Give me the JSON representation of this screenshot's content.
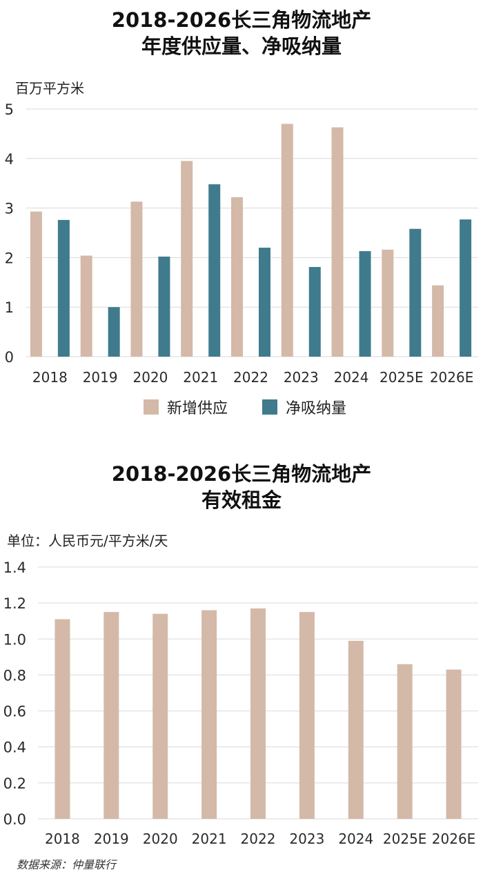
{
  "colors": {
    "supply": "#d4b9a8",
    "absorption": "#3f7b8c",
    "rent": "#d4b9a8",
    "grid": "#d9d9d9"
  },
  "chart_data": [
    {
      "type": "bar",
      "title_lines": [
        "2018-2026长三角物流地产",
        "年度供应量、净吸纳量"
      ],
      "unit": "百万平方米",
      "categories": [
        "2018",
        "2019",
        "2020",
        "2021",
        "2022",
        "2023",
        "2024",
        "2025E",
        "2026E"
      ],
      "series": [
        {
          "name": "新增供应",
          "values": [
            2.93,
            2.04,
            3.13,
            3.95,
            3.22,
            4.7,
            4.63,
            2.16,
            1.44
          ]
        },
        {
          "name": "净吸纳量",
          "values": [
            2.76,
            1.0,
            2.02,
            3.48,
            2.2,
            1.81,
            2.13,
            2.58,
            2.77
          ]
        }
      ],
      "ylim": [
        0,
        5
      ],
      "yticks": [
        "0",
        "1",
        "2",
        "3",
        "4",
        "5"
      ],
      "grid": true,
      "legend": "bottom"
    },
    {
      "type": "bar",
      "title_lines": [
        "2018-2026长三角物流地产",
        "有效租金"
      ],
      "unit": "单位：人民币元/平方米/天",
      "categories": [
        "2018",
        "2019",
        "2020",
        "2021",
        "2022",
        "2023",
        "2024",
        "2025E",
        "2026E"
      ],
      "values": [
        1.11,
        1.15,
        1.14,
        1.16,
        1.17,
        1.15,
        0.99,
        0.86,
        0.83
      ],
      "ylim": [
        0,
        1.4
      ],
      "yticks": [
        "0.0",
        "0.2",
        "0.4",
        "0.6",
        "0.8",
        "1.0",
        "1.2",
        "1.4"
      ],
      "grid": true
    }
  ],
  "source": "数据来源：仲量联行"
}
